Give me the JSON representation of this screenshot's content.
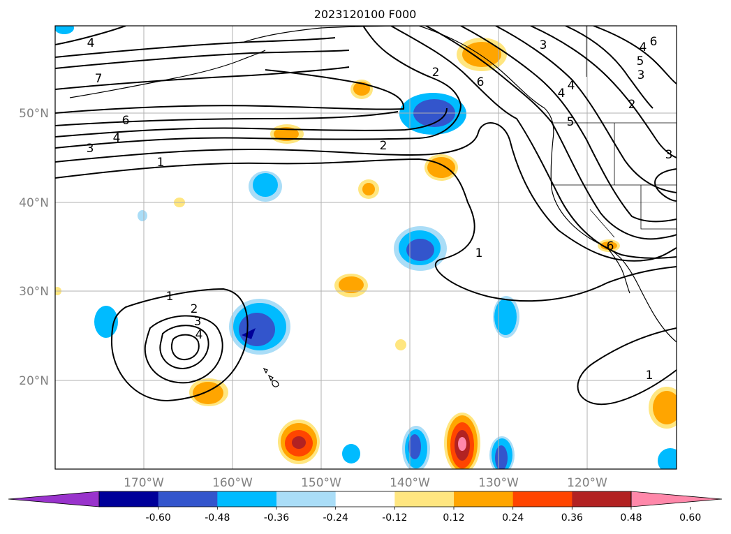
{
  "map": {
    "title": "2023120100 F000",
    "lat_labels": [
      "50°N",
      "40°N",
      "30°N",
      "20°N"
    ],
    "lon_labels": [
      "170°W",
      "160°W",
      "150°W",
      "140°W",
      "130°W",
      "120°W"
    ],
    "extent": {
      "lon_min": -180,
      "lon_max": -110,
      "lat_min": 10,
      "lat_max": 60
    },
    "grid": true
  },
  "colorbar": {
    "levels": [
      "-0.60",
      "-0.48",
      "-0.36",
      "-0.24",
      "-0.12",
      "0.12",
      "0.24",
      "0.36",
      "0.48",
      "0.60"
    ],
    "colors": [
      "#9933cc",
      "#000099",
      "#3355cc",
      "#00bbff",
      "#aaddf7",
      "#ffffff",
      "#ffe680",
      "#ffa500",
      "#ff4500",
      "#b22222",
      "#ff88aa"
    ],
    "extend": "both"
  },
  "contour_labels": [
    "4",
    "7",
    "6",
    "4",
    "3",
    "1",
    "2",
    "1",
    "2",
    "3",
    "4",
    "1",
    "2",
    "3",
    "5",
    "4",
    "6",
    "5",
    "4",
    "3",
    "2",
    "6",
    "1",
    "6",
    "4",
    "3"
  ]
}
